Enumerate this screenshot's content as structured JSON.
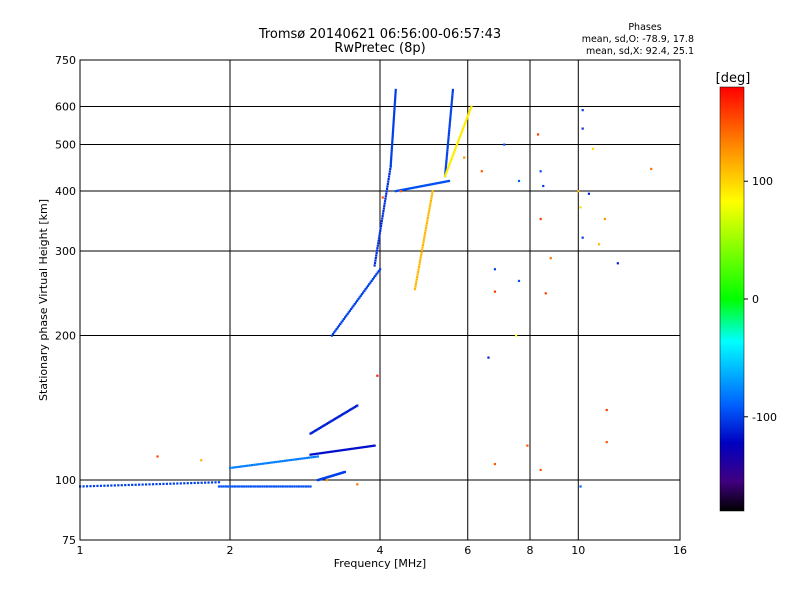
{
  "chart_data": {
    "type": "scatter",
    "title": "Tromsø 20140621 06:56:00-06:57:43",
    "subtitle": "RwPretec (8p)",
    "xlabel": "Frequency [MHz]",
    "ylabel": "Stationary phase Virtual Height [km]",
    "x_scale": "log",
    "y_scale": "log",
    "xlim": [
      1,
      16
    ],
    "ylim": [
      75,
      750
    ],
    "x_ticks": [
      1,
      2,
      4,
      6,
      8,
      10,
      16
    ],
    "y_ticks": [
      75,
      100,
      200,
      300,
      400,
      500,
      600,
      750
    ],
    "grid": true,
    "phase_info": {
      "title": "Phases",
      "line_o": "mean, sd,O: -78.9, 17.8",
      "line_x": "mean, sd,X: 92.4, 25.1"
    },
    "colorbar": {
      "label": "[deg]",
      "range": [
        -180,
        180
      ],
      "ticks": [
        100,
        0,
        -100
      ]
    },
    "traces": [
      {
        "x": [
          1.0,
          1.9
        ],
        "y": [
          97,
          99
        ],
        "phase": -100
      },
      {
        "x": [
          1.9,
          2.9
        ],
        "y": [
          97,
          97
        ],
        "phase": -95
      },
      {
        "x": [
          2.0,
          3.0
        ],
        "y": [
          106,
          112
        ],
        "phase": -80
      },
      {
        "x": [
          3.0,
          3.4
        ],
        "y": [
          100,
          104
        ],
        "phase": -100
      },
      {
        "x": [
          2.9,
          3.9
        ],
        "y": [
          113,
          118
        ],
        "phase": -115
      },
      {
        "x": [
          2.9,
          3.6
        ],
        "y": [
          125,
          143
        ],
        "phase": -110
      },
      {
        "x": [
          3.2,
          4.0
        ],
        "y": [
          200,
          275
        ],
        "phase": -100
      },
      {
        "x": [
          3.9,
          4.2
        ],
        "y": [
          280,
          450
        ],
        "phase": -105
      },
      {
        "x": [
          4.2,
          4.3
        ],
        "y": [
          450,
          650
        ],
        "phase": -100
      },
      {
        "x": [
          4.3,
          5.5
        ],
        "y": [
          400,
          420
        ],
        "phase": -95
      },
      {
        "x": [
          5.4,
          5.6
        ],
        "y": [
          430,
          650
        ],
        "phase": -100
      },
      {
        "x": [
          4.7,
          5.1
        ],
        "y": [
          250,
          400
        ],
        "phase": 120
      },
      {
        "x": [
          5.4,
          6.1
        ],
        "y": [
          430,
          600
        ],
        "phase": 105
      }
    ],
    "points": [
      {
        "x": 1.43,
        "y": 112,
        "phase": 155
      },
      {
        "x": 1.75,
        "y": 110,
        "phase": 120
      },
      {
        "x": 3.13,
        "y": 100,
        "phase": 130
      },
      {
        "x": 3.6,
        "y": 98,
        "phase": 140
      },
      {
        "x": 3.95,
        "y": 165,
        "phase": 170
      },
      {
        "x": 4.05,
        "y": 388,
        "phase": 150
      },
      {
        "x": 4.4,
        "y": 400,
        "phase": 150
      },
      {
        "x": 5.9,
        "y": 470,
        "phase": 130
      },
      {
        "x": 6.4,
        "y": 440,
        "phase": 150
      },
      {
        "x": 6.6,
        "y": 180,
        "phase": -110
      },
      {
        "x": 6.8,
        "y": 275,
        "phase": -100
      },
      {
        "x": 6.8,
        "y": 247,
        "phase": 160
      },
      {
        "x": 6.8,
        "y": 108,
        "phase": 150
      },
      {
        "x": 7.1,
        "y": 500,
        "phase": -90
      },
      {
        "x": 7.6,
        "y": 260,
        "phase": -95
      },
      {
        "x": 7.6,
        "y": 420,
        "phase": -90
      },
      {
        "x": 7.9,
        "y": 118,
        "phase": 150
      },
      {
        "x": 8.3,
        "y": 525,
        "phase": 160
      },
      {
        "x": 8.4,
        "y": 350,
        "phase": 160
      },
      {
        "x": 8.4,
        "y": 440,
        "phase": -95
      },
      {
        "x": 8.5,
        "y": 410,
        "phase": -100
      },
      {
        "x": 8.6,
        "y": 245,
        "phase": 160
      },
      {
        "x": 8.4,
        "y": 105,
        "phase": 150
      },
      {
        "x": 8.8,
        "y": 290,
        "phase": 140
      },
      {
        "x": 10.0,
        "y": 400,
        "phase": 120
      },
      {
        "x": 10.1,
        "y": 370,
        "phase": 110
      },
      {
        "x": 10.2,
        "y": 590,
        "phase": -100
      },
      {
        "x": 10.2,
        "y": 540,
        "phase": -105
      },
      {
        "x": 10.2,
        "y": 320,
        "phase": -100
      },
      {
        "x": 10.5,
        "y": 395,
        "phase": -110
      },
      {
        "x": 10.7,
        "y": 490,
        "phase": 110
      },
      {
        "x": 11.0,
        "y": 310,
        "phase": 120
      },
      {
        "x": 11.3,
        "y": 350,
        "phase": 130
      },
      {
        "x": 11.4,
        "y": 140,
        "phase": 160
      },
      {
        "x": 11.4,
        "y": 120,
        "phase": 150
      },
      {
        "x": 12.0,
        "y": 283,
        "phase": -110
      },
      {
        "x": 14.0,
        "y": 445,
        "phase": 140
      },
      {
        "x": 10.1,
        "y": 97,
        "phase": -90
      },
      {
        "x": 7.5,
        "y": 200,
        "phase": 100
      }
    ]
  }
}
